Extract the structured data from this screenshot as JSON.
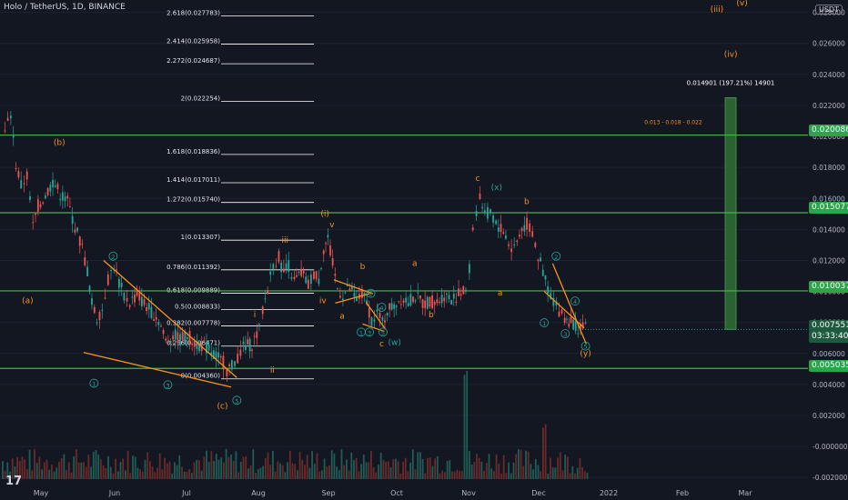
{
  "header": {
    "title": "Holo / TetherUS, 1D, BINANCE"
  },
  "currency_button": "USDT",
  "logo": "17",
  "price_tags": {
    "level_1": "0.020086",
    "level_2": "0.015077",
    "level_3": "0.010037",
    "current_price": "0.007551",
    "countdown": "03:33:40",
    "level_4": "0.005035"
  },
  "colors": {
    "background": "#131722",
    "up": "#26a69a",
    "down": "#ef5350",
    "fib": "#ffffff",
    "hline": "#4caf50",
    "wave": "#f7931a",
    "wave_alt": "#26a69a",
    "trendline": "#f7931a",
    "target_box": "#2e6b35"
  },
  "chart_data": {
    "type": "candlestick",
    "x_axis": {
      "ticks": [
        "May",
        "Jun",
        "Jul",
        "Aug",
        "Sep",
        "Oct",
        "Nov",
        "Dec",
        "2022",
        "Feb",
        "Mar"
      ]
    },
    "y_axis": {
      "ticks": [
        "0.028000",
        "0.026000",
        "0.024000",
        "0.022000",
        "0.020000",
        "0.018000",
        "0.016000",
        "0.014000",
        "0.012000",
        "0.010000",
        "0.008000",
        "0.006000",
        "0.004000",
        "0.002000",
        "-0.000000",
        "-0.002000"
      ],
      "range": [
        -0.0024,
        0.0288
      ]
    },
    "fib_levels": [
      {
        "ratio": "2.618",
        "price": 0.027783,
        "label": "2.618(0.027783)"
      },
      {
        "ratio": "2.414",
        "price": 0.025958,
        "label": "2.414(0.025958)"
      },
      {
        "ratio": "2.272",
        "price": 0.024687,
        "label": "2.272(0.024687)"
      },
      {
        "ratio": "2",
        "price": 0.022254,
        "label": "2(0.022254)"
      },
      {
        "ratio": "1.618",
        "price": 0.018836,
        "label": "1.618(0.018836)"
      },
      {
        "ratio": "1.414",
        "price": 0.017011,
        "label": "1.414(0.017011)"
      },
      {
        "ratio": "1.272",
        "price": 0.01574,
        "label": "1.272(0.015740)"
      },
      {
        "ratio": "1",
        "price": 0.013307,
        "label": "1(0.013307)"
      },
      {
        "ratio": "0.786",
        "price": 0.011392,
        "label": "0.786(0.011392)"
      },
      {
        "ratio": "0.618",
        "price": 0.009889,
        "label": "0.618(0.009889)"
      },
      {
        "ratio": "0.5",
        "price": 0.008833,
        "label": "0.5(0.008833)"
      },
      {
        "ratio": "0.382",
        "price": 0.007778,
        "label": "0.382(0.007778)"
      },
      {
        "ratio": "0.236",
        "price": 0.006471,
        "label": "0.236(0.006471)"
      },
      {
        "ratio": "0",
        "price": 0.00436,
        "label": "0(0.004360)"
      }
    ],
    "horizontal_lines": [
      0.020086,
      0.015077,
      0.010037,
      0.005035
    ],
    "current_price": 0.007551,
    "target_box": {
      "bottom": 0.00755,
      "top": 0.0225,
      "label": "0.014901 (197.21%) 14901"
    },
    "target_note": "0.013 - 0.018 - 0.022",
    "wave_labels": [
      {
        "text": "(b)",
        "price": 0.0195,
        "month": 0.25,
        "color": "wave"
      },
      {
        "text": "(a)",
        "price": 0.0093,
        "month": -0.18,
        "color": "wave"
      },
      {
        "text": "1",
        "price": 0.0039,
        "month": 0.72,
        "color": "wave_alt",
        "circled": true
      },
      {
        "text": "2",
        "price": 0.0121,
        "month": 0.98,
        "color": "wave_alt",
        "circled": true
      },
      {
        "text": "3",
        "price": 0.0038,
        "month": 1.74,
        "color": "wave_alt",
        "circled": true
      },
      {
        "text": "(c)",
        "price": 0.0025,
        "month": 2.5,
        "color": "wave"
      },
      {
        "text": "5",
        "price": 0.0028,
        "month": 2.7,
        "color": "wave_alt",
        "circled": true
      },
      {
        "text": "i",
        "price": 0.0084,
        "month": 2.95,
        "color": "wave"
      },
      {
        "text": "ii",
        "price": 0.0048,
        "month": 3.2,
        "color": "wave"
      },
      {
        "text": "iii",
        "price": 0.0132,
        "month": 3.38,
        "color": "wave"
      },
      {
        "text": "(i)",
        "price": 0.0149,
        "month": 3.95,
        "color": "wave"
      },
      {
        "text": "v",
        "price": 0.0142,
        "month": 4.05,
        "color": "wave"
      },
      {
        "text": "iv",
        "price": 0.0093,
        "month": 3.92,
        "color": "wave"
      },
      {
        "text": "b",
        "price": 0.0115,
        "month": 4.5,
        "color": "wave"
      },
      {
        "text": "a",
        "price": 0.0083,
        "month": 4.2,
        "color": "wave"
      },
      {
        "text": "2",
        "price": 0.0097,
        "month": 4.62,
        "color": "wave_alt",
        "circled": true
      },
      {
        "text": "4",
        "price": 0.0088,
        "month": 4.78,
        "color": "wave_alt",
        "circled": true
      },
      {
        "text": "1",
        "price": 0.0072,
        "month": 4.48,
        "color": "wave_alt",
        "circled": true
      },
      {
        "text": "3",
        "price": 0.0072,
        "month": 4.6,
        "color": "wave_alt",
        "circled": true
      },
      {
        "text": "5",
        "price": 0.0072,
        "month": 4.8,
        "color": "wave_alt",
        "circled": true
      },
      {
        "text": "c",
        "price": 0.0065,
        "month": 4.78,
        "color": "wave"
      },
      {
        "text": "(w)",
        "price": 0.0066,
        "month": 4.97,
        "color": "wave_alt"
      },
      {
        "text": "a",
        "price": 0.0117,
        "month": 5.25,
        "color": "wave"
      },
      {
        "text": "b",
        "price": 0.0084,
        "month": 5.48,
        "color": "wave"
      },
      {
        "text": "c",
        "price": 0.0172,
        "month": 6.13,
        "color": "wave"
      },
      {
        "text": "(x)",
        "price": 0.0166,
        "month": 6.4,
        "color": "wave_alt"
      },
      {
        "text": "b",
        "price": 0.0157,
        "month": 6.83,
        "color": "wave"
      },
      {
        "text": "a",
        "price": 0.0098,
        "month": 6.45,
        "color": "wave"
      },
      {
        "text": "2",
        "price": 0.0121,
        "month": 7.25,
        "color": "wave_alt",
        "circled": true
      },
      {
        "text": "4",
        "price": 0.0092,
        "month": 7.52,
        "color": "wave_alt",
        "circled": true
      },
      {
        "text": "1",
        "price": 0.0078,
        "month": 7.08,
        "color": "wave_alt",
        "circled": true
      },
      {
        "text": "3",
        "price": 0.0071,
        "month": 7.38,
        "color": "wave_alt",
        "circled": true
      },
      {
        "text": "5",
        "price": 0.0063,
        "month": 7.67,
        "color": "wave_alt",
        "circled": true
      },
      {
        "text": "(y)",
        "price": 0.0059,
        "month": 7.67,
        "color": "wave"
      },
      {
        "text": "(iii)",
        "price": 0.0281,
        "month": 9.55,
        "color": "wave"
      },
      {
        "text": "(v)",
        "price": 0.0285,
        "month": 9.95,
        "color": "wave"
      },
      {
        "text": "(iv)",
        "price": 0.0252,
        "month": 9.77,
        "color": "wave"
      }
    ],
    "series": [
      {
        "name": "price_path",
        "points": [
          [
            -0.5,
            0.0202
          ],
          [
            -0.42,
            0.0215
          ],
          [
            -0.35,
            0.0182
          ],
          [
            -0.28,
            0.0168
          ],
          [
            -0.2,
            0.0175
          ],
          [
            -0.12,
            0.0142
          ],
          [
            -0.05,
            0.0155
          ],
          [
            0.05,
            0.0162
          ],
          [
            0.15,
            0.0171
          ],
          [
            0.25,
            0.0163
          ],
          [
            0.35,
            0.0158
          ],
          [
            0.45,
            0.0142
          ],
          [
            0.55,
            0.0128
          ],
          [
            0.62,
            0.0113
          ],
          [
            0.68,
            0.0092
          ],
          [
            0.75,
            0.0083
          ],
          [
            0.82,
            0.0089
          ],
          [
            0.9,
            0.0108
          ],
          [
            0.98,
            0.0117
          ],
          [
            1.05,
            0.0106
          ],
          [
            1.12,
            0.0097
          ],
          [
            1.2,
            0.0093
          ],
          [
            1.3,
            0.0098
          ],
          [
            1.4,
            0.0092
          ],
          [
            1.5,
            0.0087
          ],
          [
            1.6,
            0.0082
          ],
          [
            1.7,
            0.0068
          ],
          [
            1.8,
            0.0072
          ],
          [
            1.9,
            0.0069
          ],
          [
            2.0,
            0.0072
          ],
          [
            2.1,
            0.0067
          ],
          [
            2.2,
            0.0065
          ],
          [
            2.3,
            0.0063
          ],
          [
            2.4,
            0.0058
          ],
          [
            2.5,
            0.0054
          ],
          [
            2.55,
            0.0049
          ],
          [
            2.62,
            0.0052
          ],
          [
            2.7,
            0.0058
          ],
          [
            2.78,
            0.0064
          ],
          [
            2.9,
            0.0066
          ],
          [
            3.0,
            0.0075
          ],
          [
            3.05,
            0.0088
          ],
          [
            3.12,
            0.0102
          ],
          [
            3.2,
            0.0118
          ],
          [
            3.28,
            0.0122
          ],
          [
            3.35,
            0.0112
          ],
          [
            3.42,
            0.0117
          ],
          [
            3.5,
            0.0106
          ],
          [
            3.6,
            0.0112
          ],
          [
            3.7,
            0.0104
          ],
          [
            3.78,
            0.0112
          ],
          [
            3.85,
            0.0108
          ],
          [
            3.92,
            0.0128
          ],
          [
            3.98,
            0.0134
          ],
          [
            4.05,
            0.0117
          ],
          [
            4.12,
            0.0102
          ],
          [
            4.2,
            0.0098
          ],
          [
            4.3,
            0.0102
          ],
          [
            4.4,
            0.0094
          ],
          [
            4.48,
            0.0098
          ],
          [
            4.55,
            0.0093
          ],
          [
            4.62,
            0.0082
          ],
          [
            4.7,
            0.0086
          ],
          [
            4.78,
            0.0079
          ],
          [
            4.85,
            0.0088
          ],
          [
            4.95,
            0.0091
          ],
          [
            5.05,
            0.0096
          ],
          [
            5.15,
            0.0094
          ],
          [
            5.25,
            0.0097
          ],
          [
            5.35,
            0.0092
          ],
          [
            5.45,
            0.0094
          ],
          [
            5.55,
            0.0093
          ],
          [
            5.65,
            0.0098
          ],
          [
            5.75,
            0.0095
          ],
          [
            5.85,
            0.0098
          ],
          [
            5.95,
            0.0101
          ],
          [
            6.0,
            0.0114
          ],
          [
            6.05,
            0.0142
          ],
          [
            6.1,
            0.0152
          ],
          [
            6.15,
            0.0162
          ],
          [
            6.22,
            0.0148
          ],
          [
            6.3,
            0.0152
          ],
          [
            6.38,
            0.0143
          ],
          [
            6.45,
            0.0141
          ],
          [
            6.52,
            0.0136
          ],
          [
            6.6,
            0.0127
          ],
          [
            6.68,
            0.0132
          ],
          [
            6.75,
            0.0141
          ],
          [
            6.82,
            0.0143
          ],
          [
            6.9,
            0.0138
          ],
          [
            6.98,
            0.0122
          ],
          [
            7.05,
            0.0113
          ],
          [
            7.12,
            0.0102
          ],
          [
            7.2,
            0.0094
          ],
          [
            7.28,
            0.0088
          ],
          [
            7.36,
            0.0083
          ],
          [
            7.45,
            0.0081
          ],
          [
            7.55,
            0.0077
          ],
          [
            7.62,
            0.0076
          ],
          [
            7.7,
            0.00755
          ]
        ]
      }
    ]
  }
}
